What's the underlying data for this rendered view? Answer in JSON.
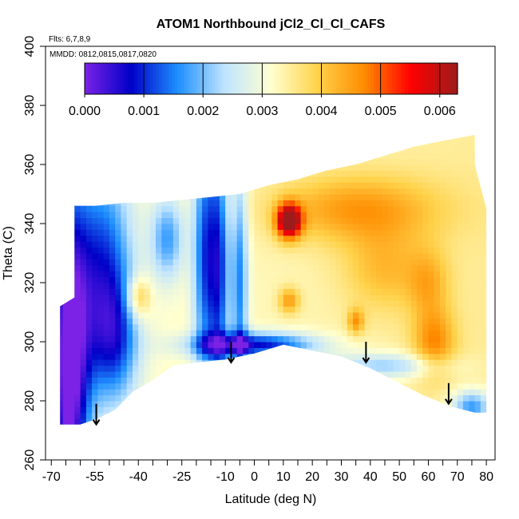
{
  "chart_data": {
    "type": "heatmap",
    "title": "ATOM1 Northbound jCl2_Cl_Cl_CAFS",
    "flights_label": "Flts: 6,7,8,9",
    "dates_label": "MMDD: 0812,0815,0817,0820",
    "xlabel": "Latitude (deg N)",
    "ylabel": "Theta (C)",
    "xlim": [
      -72,
      83
    ],
    "ylim": [
      260,
      400
    ],
    "x_tick_labels": [
      "-70",
      "-55",
      "-40",
      "-25",
      "-10",
      "0",
      "10",
      "20",
      "30",
      "40",
      "50",
      "60",
      "70",
      "80"
    ],
    "x_tick_values": [
      -70,
      -55,
      -40,
      -25,
      -10,
      0,
      10,
      20,
      30,
      40,
      50,
      60,
      70,
      80
    ],
    "x_minor_ticks": [
      -65,
      -60,
      -50,
      -45,
      -35,
      -30,
      -20,
      -15,
      -5,
      5,
      15,
      25,
      35,
      45,
      55,
      65,
      75
    ],
    "y_ticks": [
      260,
      280,
      300,
      320,
      340,
      360,
      380,
      400
    ],
    "y_tick_labels": [
      "260",
      "280",
      "300",
      "320",
      "340",
      "360",
      "380",
      "400"
    ],
    "colorbar": {
      "range": [
        0,
        0.0063
      ],
      "tick_values": [
        0,
        0.001,
        0.002,
        0.003,
        0.004,
        0.005,
        0.006
      ],
      "tick_labels": [
        "0.000",
        "0.001",
        "0.002",
        "0.003",
        "0.004",
        "0.005",
        "0.006"
      ],
      "colors": [
        "#7b22e6",
        "#0000c8",
        "#1e90ff",
        "#bfe4ff",
        "#ffffd0",
        "#ffd24a",
        "#ff8c00",
        "#ff0000",
        "#9b1c1c"
      ]
    },
    "domain_outline": [
      [
        -67,
        272
      ],
      [
        -67,
        312
      ],
      [
        -62,
        315
      ],
      [
        -62,
        346
      ],
      [
        -55,
        346
      ],
      [
        -45,
        347
      ],
      [
        -35,
        347
      ],
      [
        -25,
        348
      ],
      [
        -15,
        349
      ],
      [
        -5,
        350
      ],
      [
        5,
        353
      ],
      [
        15,
        355
      ],
      [
        25,
        358
      ],
      [
        35,
        360
      ],
      [
        45,
        363
      ],
      [
        55,
        366
      ],
      [
        65,
        368
      ],
      [
        76,
        370
      ],
      [
        76,
        360
      ],
      [
        80,
        345
      ],
      [
        80,
        276
      ],
      [
        76,
        276
      ],
      [
        68,
        278
      ],
      [
        58,
        282
      ],
      [
        48,
        287
      ],
      [
        40,
        291
      ],
      [
        30,
        295
      ],
      [
        20,
        297
      ],
      [
        10,
        299
      ],
      [
        0,
        296
      ],
      [
        -10,
        294
      ],
      [
        -20,
        293
      ],
      [
        -28,
        292
      ],
      [
        -35,
        287
      ],
      [
        -42,
        283
      ],
      [
        -48,
        277
      ],
      [
        -54,
        274
      ],
      [
        -60,
        272
      ],
      [
        -67,
        272
      ]
    ],
    "tropopause_arrows": [
      {
        "x": -54.5,
        "y_top": 279,
        "y_bottom": 272
      },
      {
        "x": -8,
        "y_top": 300,
        "y_bottom": 293
      },
      {
        "x": 38.5,
        "y_top": 300,
        "y_bottom": 293
      },
      {
        "x": 67,
        "y_top": 286,
        "y_bottom": 279
      }
    ],
    "features": [
      {
        "type": "background",
        "value": 0.0031
      },
      {
        "type": "gauss",
        "x": -64,
        "y": 292,
        "sx": 5,
        "sy": 40,
        "value": -0.0035
      },
      {
        "type": "gauss",
        "x": -52,
        "y": 325,
        "sx": 7,
        "sy": 25,
        "value": -0.002
      },
      {
        "type": "gauss",
        "x": -48,
        "y": 300,
        "sx": 6,
        "sy": 15,
        "value": -0.0015
      },
      {
        "type": "gauss",
        "x": -40,
        "y": 315,
        "sx": 3,
        "sy": 5,
        "value": 0.0012
      },
      {
        "type": "gauss",
        "x": -30,
        "y": 335,
        "sx": 4,
        "sy": 10,
        "value": -0.0015
      },
      {
        "type": "gauss",
        "x": -17,
        "y": 330,
        "sx": 3,
        "sy": 30,
        "value": -0.002
      },
      {
        "type": "gauss",
        "x": -12,
        "y": 325,
        "sx": 2.5,
        "sy": 30,
        "value": -0.002
      },
      {
        "type": "gauss",
        "x": -5,
        "y": 320,
        "sx": 2,
        "sy": 30,
        "value": -0.0017
      },
      {
        "type": "gauss",
        "x": 12,
        "y": 341,
        "sx": 3,
        "sy": 4,
        "value": 0.0035
      },
      {
        "type": "gauss",
        "x": 12,
        "y": 314,
        "sx": 2.5,
        "sy": 3,
        "value": 0.0012
      },
      {
        "type": "gauss",
        "x": 35,
        "y": 307,
        "sx": 2,
        "sy": 3,
        "value": 0.0012
      },
      {
        "type": "gauss",
        "x": 35,
        "y": 345,
        "sx": 20,
        "sy": 8,
        "value": 0.0012
      },
      {
        "type": "gauss",
        "x": 45,
        "y": 325,
        "sx": 10,
        "sy": 10,
        "value": 0.0008
      },
      {
        "type": "gauss",
        "x": 62,
        "y": 300,
        "sx": 5,
        "sy": 8,
        "value": 0.0013
      },
      {
        "type": "gauss",
        "x": 60,
        "y": 320,
        "sx": 5,
        "sy": 8,
        "value": 0.0008
      },
      {
        "type": "gauss",
        "x": 0,
        "y": 299,
        "sx": 15,
        "sy": 3,
        "value": -0.0025
      },
      {
        "type": "gauss",
        "x": 45,
        "y": 292,
        "sx": 15,
        "sy": 3,
        "value": -0.0012
      },
      {
        "type": "gauss",
        "x": 75,
        "y": 278,
        "sx": 5,
        "sy": 4,
        "value": -0.0018
      }
    ]
  }
}
